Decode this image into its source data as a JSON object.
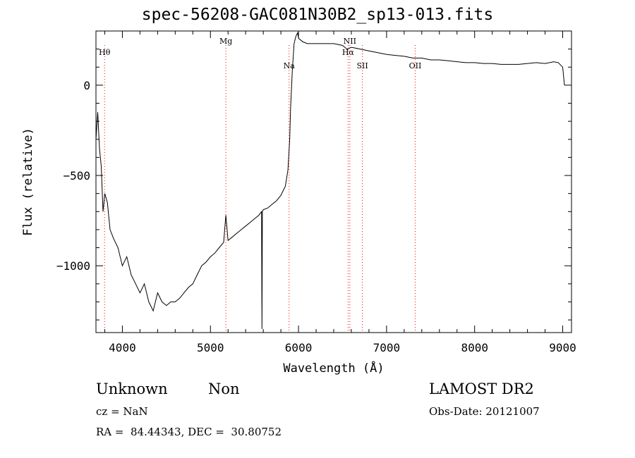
{
  "title": "spec-56208-GAC081N30B2_sp13-013.fits",
  "info": {
    "class": "Unknown",
    "subclass": "Non",
    "survey": "LAMOST DR2",
    "cz": "cz = NaN",
    "obs_date": "Obs-Date: 20121007",
    "coords": "RA =  84.44343, DEC =  30.80752"
  },
  "chart_data": {
    "type": "line",
    "title": "spec-56208-GAC081N30B2_sp13-013.fits",
    "xlabel": "Wavelength (Å)",
    "ylabel": "Flux (relative)",
    "xlim": [
      3700,
      9100
    ],
    "ylim": [
      -1370,
      300
    ],
    "x_ticks": [
      4000,
      5000,
      6000,
      7000,
      8000,
      9000
    ],
    "y_ticks": [
      0,
      -500,
      -1000
    ],
    "line_color": "#000000",
    "marker_color": "#ff0000",
    "lines": [
      {
        "label": "Hθ",
        "wavelength": 3798,
        "label_level": "upper"
      },
      {
        "label": "Mg",
        "wavelength": 5175,
        "label_level": "top"
      },
      {
        "label": "Na",
        "wavelength": 5893,
        "label_level": "middle"
      },
      {
        "label": "NII",
        "wavelength": 6583,
        "label_level": "top"
      },
      {
        "label": "Hα",
        "wavelength": 6563,
        "label_level": "upper"
      },
      {
        "label": "SII",
        "wavelength": 6725,
        "label_level": "middle"
      },
      {
        "label": "OII",
        "wavelength": 7325,
        "label_level": "middle"
      }
    ],
    "series": [
      {
        "x": [
          3700,
          3720,
          3740,
          3760,
          3780,
          3800,
          3830,
          3860,
          3900,
          3950,
          4000,
          4050,
          4100,
          4150,
          4200,
          4250,
          4300,
          4350,
          4400,
          4450,
          4500,
          4550,
          4600,
          4650,
          4700,
          4750,
          4800,
          4850,
          4900,
          4950,
          5000,
          5050,
          5100,
          5150,
          5175,
          5200,
          5250,
          5300,
          5350,
          5400,
          5450,
          5500,
          5550,
          5580,
          5585,
          5590,
          5600,
          5650,
          5700,
          5750,
          5800,
          5850,
          5880,
          5900,
          5910,
          5930,
          5950,
          5970,
          5990,
          6000,
          6050,
          6100,
          6200,
          6300,
          6400,
          6500,
          6550,
          6600,
          6700,
          6800,
          6900,
          7000,
          7100,
          7200,
          7300,
          7400,
          7500,
          7600,
          7700,
          7800,
          7900,
          8000,
          8100,
          8200,
          8300,
          8400,
          8500,
          8600,
          8700,
          8800,
          8900,
          8950,
          9000,
          9020
        ],
        "y": [
          -300,
          -150,
          -350,
          -450,
          -700,
          -600,
          -650,
          -800,
          -850,
          -900,
          -1000,
          -950,
          -1050,
          -1100,
          -1150,
          -1100,
          -1200,
          -1250,
          -1150,
          -1200,
          -1220,
          -1200,
          -1200,
          -1180,
          -1150,
          -1120,
          -1100,
          -1050,
          -1000,
          -980,
          -950,
          -930,
          -900,
          -870,
          -720,
          -860,
          -840,
          -820,
          -800,
          -780,
          -760,
          -740,
          -720,
          -700,
          -1350,
          -700,
          -690,
          -680,
          -660,
          -640,
          -610,
          -560,
          -470,
          -300,
          -130,
          80,
          230,
          270,
          290,
          260,
          240,
          230,
          230,
          230,
          230,
          220,
          200,
          210,
          200,
          190,
          180,
          170,
          165,
          160,
          150,
          150,
          140,
          140,
          135,
          130,
          125,
          125,
          120,
          120,
          115,
          115,
          115,
          120,
          125,
          120,
          130,
          125,
          100,
          0
        ]
      }
    ]
  }
}
